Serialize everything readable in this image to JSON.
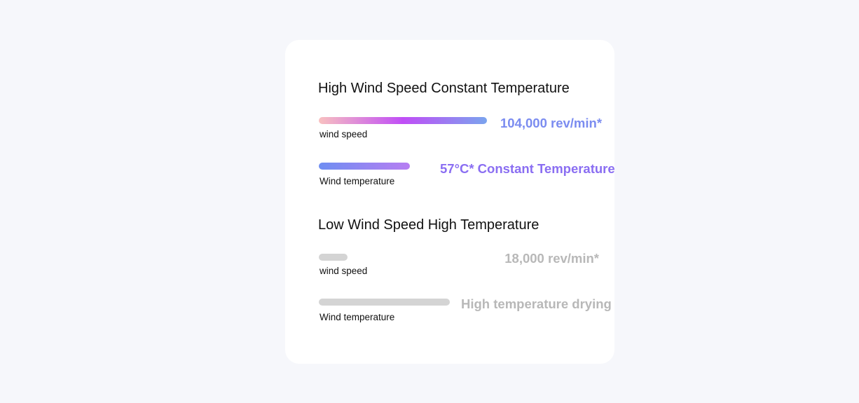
{
  "sections": [
    {
      "title": "High Wind Speed Constant Temperature",
      "rows": [
        {
          "label": "wind speed",
          "value": "104,000 rev/min*",
          "level_percent": 100,
          "gradient": [
            "#f8c0c0",
            "#c04ef6",
            "#7aa4ee"
          ],
          "value_color": "#7b8cf0"
        },
        {
          "label": "Wind temperature",
          "value": "57°C* Constant Temperature",
          "level_percent": 54,
          "gradient": [
            "#6f8ef2",
            "#b77ef2"
          ],
          "value_color": "#8a6ef2"
        }
      ]
    },
    {
      "title": "Low Wind Speed High Temperature",
      "rows": [
        {
          "label": "wind speed",
          "value": "18,000 rev/min*",
          "level_percent": 17,
          "gradient": [
            "#d4d4d4",
            "#d4d4d4"
          ],
          "value_color": "#b8b8b8"
        },
        {
          "label": "Wind temperature",
          "value": "High temperature drying",
          "level_percent": 78,
          "gradient": [
            "#d4d4d4",
            "#d4d4d4"
          ],
          "value_color": "#b8b8b8"
        }
      ]
    }
  ]
}
